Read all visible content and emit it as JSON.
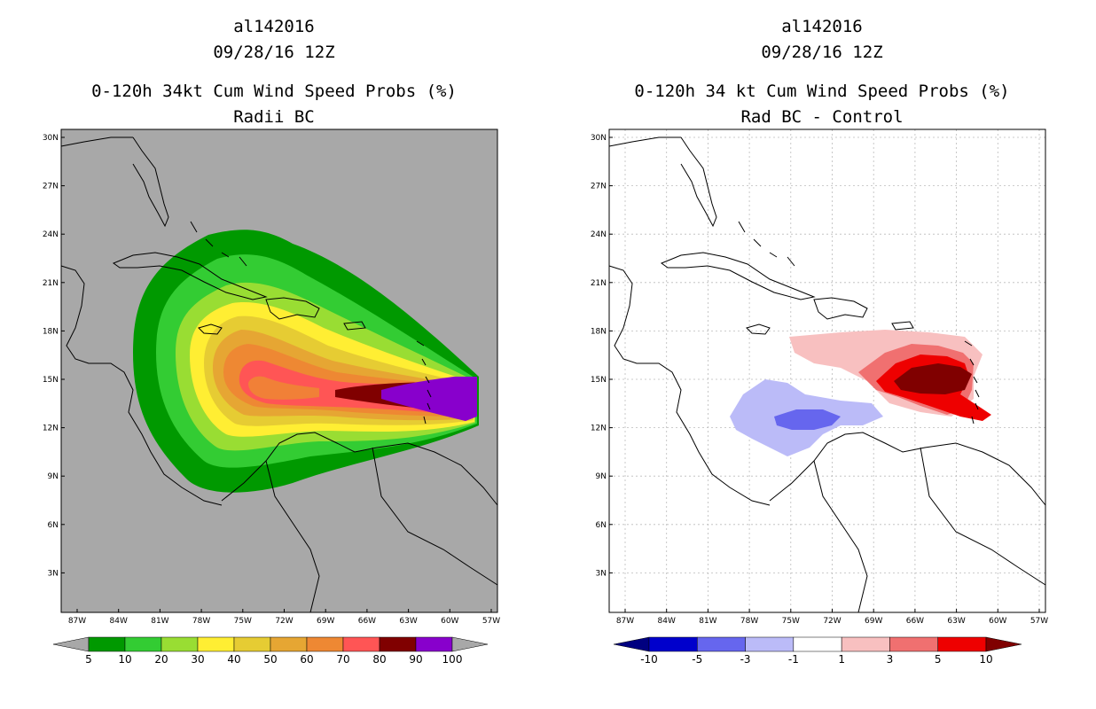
{
  "panels": [
    {
      "title_line1": "al142016",
      "title_line2": "09/28/16 12Z",
      "title_line3": "0-120h 34kt Cum Wind Speed Probs (%)",
      "title_line4": "Radii BC",
      "background_color": "#a8a8a8",
      "colorbar": {
        "labels": [
          "5",
          "10",
          "20",
          "30",
          "40",
          "50",
          "60",
          "70",
          "80",
          "90",
          "100"
        ],
        "colors": [
          "#009900",
          "#33cc33",
          "#99dd33",
          "#ffee33",
          "#e6cc33",
          "#e6a633",
          "#ee8833",
          "#ff5555",
          "#800000",
          "#8800cc"
        ],
        "under_color": "#a8a8a8",
        "over_color": "#a8a8a8"
      }
    },
    {
      "title_line1": "al142016",
      "title_line2": "09/28/16 12Z",
      "title_line3": "0-120h 34 kt Cum Wind Speed Probs (%)",
      "title_line4": "Rad BC - Control",
      "background_color": "#ffffff",
      "colorbar": {
        "labels": [
          "-10",
          "-5",
          "-3",
          "-1",
          "1",
          "3",
          "5",
          "10"
        ],
        "colors": [
          "#0000cc",
          "#6666ee",
          "#bbbbf8",
          "#ffffff",
          "#f8c0c0",
          "#f07070",
          "#ee0000"
        ],
        "under_color": "#000080",
        "over_color": "#800000"
      }
    }
  ],
  "axis": {
    "lat_labels": [
      "30N",
      "27N",
      "24N",
      "21N",
      "18N",
      "15N",
      "12N",
      "9N",
      "6N",
      "3N"
    ],
    "lon_labels": [
      "87W",
      "84W",
      "81W",
      "78W",
      "75W",
      "72W",
      "69W",
      "66W",
      "63W",
      "60W",
      "57W"
    ]
  }
}
